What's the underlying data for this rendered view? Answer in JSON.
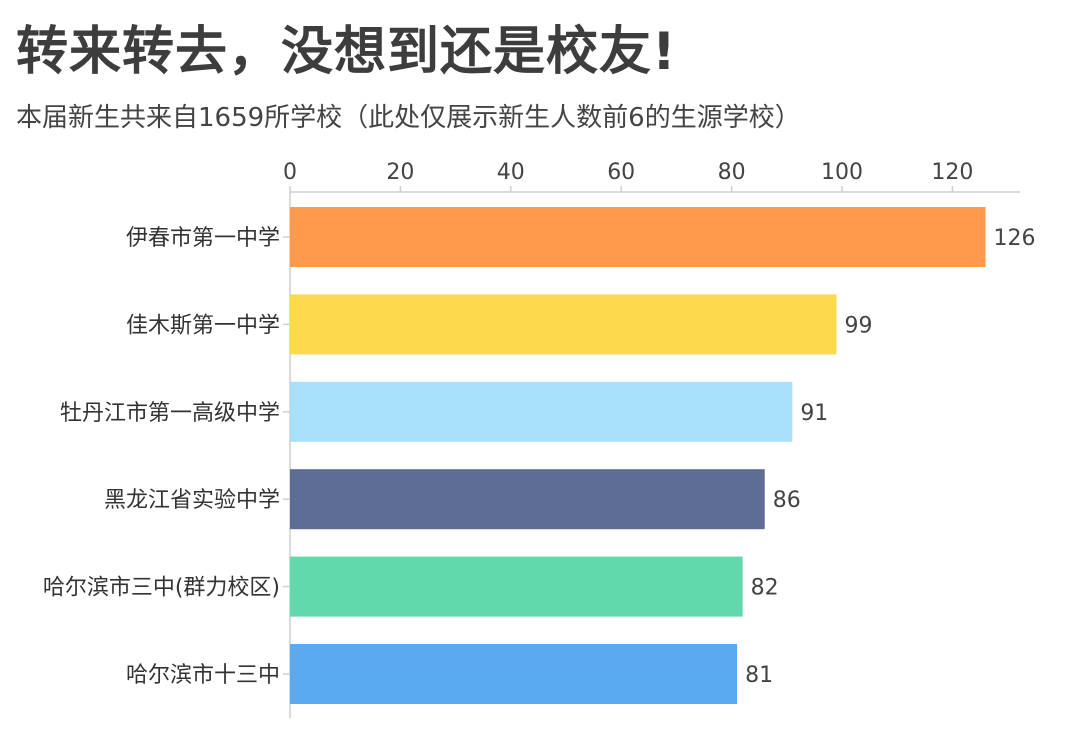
{
  "title": "转来转去，没想到还是校友!",
  "subtitle": "本届新生共来自1659所学校（此处仅展示新生人数前6的生源学校）",
  "chart_data": {
    "type": "bar",
    "orientation": "horizontal",
    "axis_position": "top",
    "categories": [
      "伊春市第一中学",
      "佳木斯第一中学",
      "牡丹江市第一高级中学",
      "黑龙江省实验中学",
      "哈尔滨市三中(群力校区)",
      "哈尔滨市十三中"
    ],
    "values": [
      126,
      99,
      91,
      86,
      82,
      81
    ],
    "colors": [
      "#FF9A4D",
      "#FDD94E",
      "#A8E0FA",
      "#5D6D96",
      "#62D9AB",
      "#59AAF1"
    ],
    "xlim": [
      0,
      132
    ],
    "xticks": [
      0,
      20,
      40,
      60,
      80,
      100,
      120
    ],
    "grid": false,
    "data_labels": true
  }
}
